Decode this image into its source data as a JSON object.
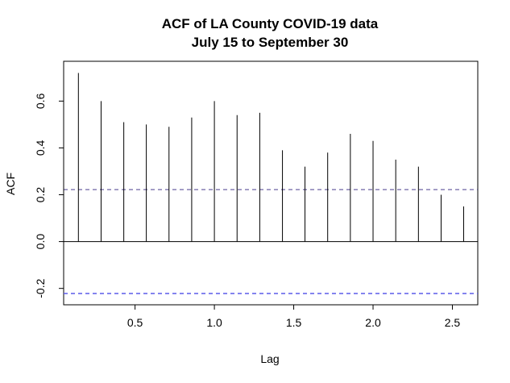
{
  "chart_data": {
    "type": "bar",
    "title": [
      "ACF of LA County COVID-19 data",
      "July 15 to September 30"
    ],
    "xlabel": "Lag",
    "ylabel": "ACF",
    "xlim": [
      0.05,
      2.66
    ],
    "ylim": [
      -0.27,
      0.77
    ],
    "x_ticks": [
      {
        "value": 0.5,
        "label": "0.5"
      },
      {
        "value": 1.0,
        "label": "1.0"
      },
      {
        "value": 1.5,
        "label": "1.5"
      },
      {
        "value": 2.0,
        "label": "2.0"
      },
      {
        "value": 2.5,
        "label": "2.5"
      }
    ],
    "y_ticks": [
      {
        "value": -0.2,
        "label": "-0.2"
      },
      {
        "value": 0.0,
        "label": "0.0"
      },
      {
        "value": 0.2,
        "label": "0.2"
      },
      {
        "value": 0.4,
        "label": "0.4"
      },
      {
        "value": 0.6,
        "label": "0.6"
      }
    ],
    "lags": [
      0.143,
      0.286,
      0.429,
      0.571,
      0.714,
      0.857,
      1.0,
      1.143,
      1.286,
      1.429,
      1.571,
      1.714,
      1.857,
      2.0,
      2.143,
      2.286,
      2.429,
      2.571
    ],
    "acf": [
      0.72,
      0.6,
      0.51,
      0.5,
      0.49,
      0.53,
      0.6,
      0.54,
      0.55,
      0.39,
      0.32,
      0.38,
      0.46,
      0.43,
      0.35,
      0.32,
      0.2,
      0.15
    ],
    "confidence_bounds": [
      0.222,
      -0.222
    ],
    "colors": {
      "spike": "#000000",
      "zero_line": "#000000",
      "upper_bound": "#4a3f8f",
      "lower_bound": "#5b5bea"
    },
    "grid": false,
    "legend": "none"
  }
}
